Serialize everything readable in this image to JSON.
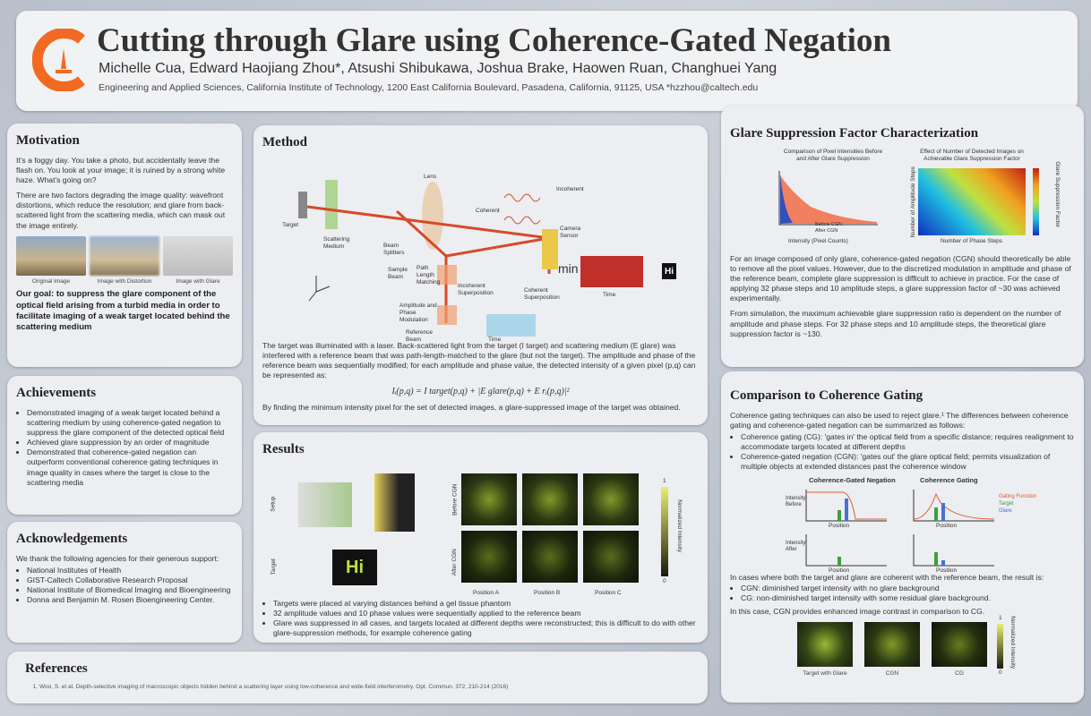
{
  "header": {
    "title": "Cutting through Glare using Coherence-Gated Negation",
    "authors": "Michelle Cua, Edward Haojiang Zhou*, Atsushi Shibukawa, Joshua Brake, Haowen Ruan, Changhuei Yang",
    "affiliation": "Engineering and Applied Sciences, California Institute of Technology, 1200 East California Boulevard, Pasadena, California, 91125, USA  *hzzhou@caltech.edu"
  },
  "motivation": {
    "heading": "Motivation",
    "paragraphs": [
      "It's a foggy day.  You take a photo, but accidentally leave the flash on. You look at your image; it is ruined by a strong white haze.  What's going on?",
      "There are two factors degrading the image quality: wavefront distortions, which reduce the resolution; and glare from back-scattered light from the scattering media, which can mask out the image entirely."
    ],
    "captions": [
      "Original Image",
      "Image with Distortion",
      "Image with Glare"
    ],
    "goal": "Our goal:  to suppress the glare component of the optical field arising from a turbid media in order to facilitate imaging of a weak target located behind the scattering medium"
  },
  "achievements": {
    "heading": "Achievements",
    "items": [
      "Demonstrated imaging of a weak target located behind a scattering medium by using coherence-gated negation to suppress the glare component of the detected optical field",
      "Achieved glare suppression by an order of magnitude",
      "Demonstrated that coherence-gated negation can outperform conventional coherence gating techniques in image quality in cases where the target is close to the scattering media"
    ]
  },
  "acknowledgements": {
    "heading": "Acknowledgements",
    "intro": "We thank the following agencies for their generous support:",
    "items": [
      "National Institutes of Health",
      "GIST-Caltech Collaborative Research Proposal",
      "National Institute of Biomedical Imaging and Bioengineering",
      "Donna and Benjamin M. Rosen Bioengineering Center."
    ]
  },
  "references": {
    "heading": "References",
    "items": [
      "Woo, S. et al. Depth-selective imaging of macroscopic objects hidden behind a scattering layer using low-coherence and wide-field interferometry. Opt. Commun. 372, 210-214 (2016)"
    ]
  },
  "method": {
    "heading": "Method",
    "labels": [
      "Target",
      "Scattering Medium",
      "Lens",
      "Coherent",
      "Incoherent",
      "Camera Sensor",
      "Beam Splitters",
      "Sample Beam",
      "Path Length Matching",
      "Incoherent Superposition",
      "Coherent Superposition",
      "Amplitude and Phase Modulation",
      "Reference Beam",
      "Time",
      "Time",
      "min",
      "Hi"
    ],
    "text": "The target was illuminated with a laser. Back-scattered light from the target (I target) and scattering medium (E glare) was interfered with a reference beam that was path-length-matched to the glare (but not the target). The amplitude and phase of the reference beam was sequentially modified; for each amplitude and phase value, the detected intensity of a given pixel (p,q) can be represented as:",
    "equation": "Iᵢ(p,q) = I target(p,q) + |E glare(p,q) + E rᵢ(p,q)|²",
    "conclusion": "By finding the minimum intensity pixel for the set of detected images, a glare-suppressed image of the target was obtained."
  },
  "results": {
    "heading": "Results",
    "row_labels": [
      "Setup",
      "Target",
      "Before CGN",
      "After CGN"
    ],
    "positions": [
      "Position A",
      "Position B",
      "Position C"
    ],
    "colorbar": [
      "1",
      "Normalized Intensity",
      "0"
    ],
    "target_text": "Hi",
    "items": [
      "Targets were placed at varying distances behind a gel tissue phantom",
      "32 amplitude values and 10 phase values were sequentially applied to the reference beam",
      "Glare was suppressed in all cases, and targets located at different depths were reconstructed; this is difficult to do with other glare-suppression methods, for example coherence gating"
    ]
  },
  "glare": {
    "heading": "Glare Suppression Factor Characterization",
    "fig_titles": [
      "Comparison of Pixel Intensities Before and After Glare Suppression",
      "Effect of Number of Detected Images on Achievable Glare Suppression Factor"
    ],
    "axis_labels": [
      "Intensity (Pixel Counts)",
      "Number of Phase Steps",
      "Number of Amplitude Steps",
      "Glare Suppression Factor"
    ],
    "legend": [
      "Before CGN",
      "After CGN"
    ],
    "paragraphs": [
      "For an image composed of only glare, coherence-gated negation (CGN) should theoretically be able to remove all the pixel values. However, due to the discretized modulation in amplitude and phase of the reference beam, complete glare suppression is difficult to achieve in practice. For the case of applying 32 phase steps and 10 amplitude steps, a glare suppression factor of ~30 was achieved experimentally.",
      "From simulation, the maximum achievable glare suppression ratio is dependent on the number of amplitude and phase steps. For 32 phase steps and 10 amplitude steps, the theoretical glare suppression factor is ~130."
    ]
  },
  "comparison": {
    "heading": "Comparison to Coherence Gating",
    "intro": "Coherence gating techniques can also be used to reject glare.¹ The differences between coherence gating and coherence-gated negation can be summarized as follows:",
    "items": [
      "Coherence gating (CG): 'gates in' the optical field from a specific distance; requires realignment to accommodate targets located at different depths",
      "Coherence-gated negation (CGN): 'gates out' the glare optical field; permits visualization of multiple objects at extended distances past the coherence window"
    ],
    "plot_titles": [
      "Coherence-Gated Negation",
      "Coherence Gating"
    ],
    "plot_labels": [
      "Intensity Before",
      "Intensity After",
      "Position",
      "Position",
      "Position",
      "Position"
    ],
    "legend": [
      "Gating Function",
      "Target",
      "Glare"
    ],
    "result_intro": "In cases where both the target and glare are coherent with the reference beam, the result is:",
    "results": [
      "CGN: diminished target intensity with no glare background",
      "CG: non-diminished target intensity with some residual glare background."
    ],
    "conclusion": "In this case, CGN provides enhanced image contrast in comparison to CG.",
    "captions": [
      "Target with Glare",
      "CGN",
      "CG"
    ],
    "colorbar": [
      "1",
      "Normalized Intensity",
      "0"
    ]
  }
}
